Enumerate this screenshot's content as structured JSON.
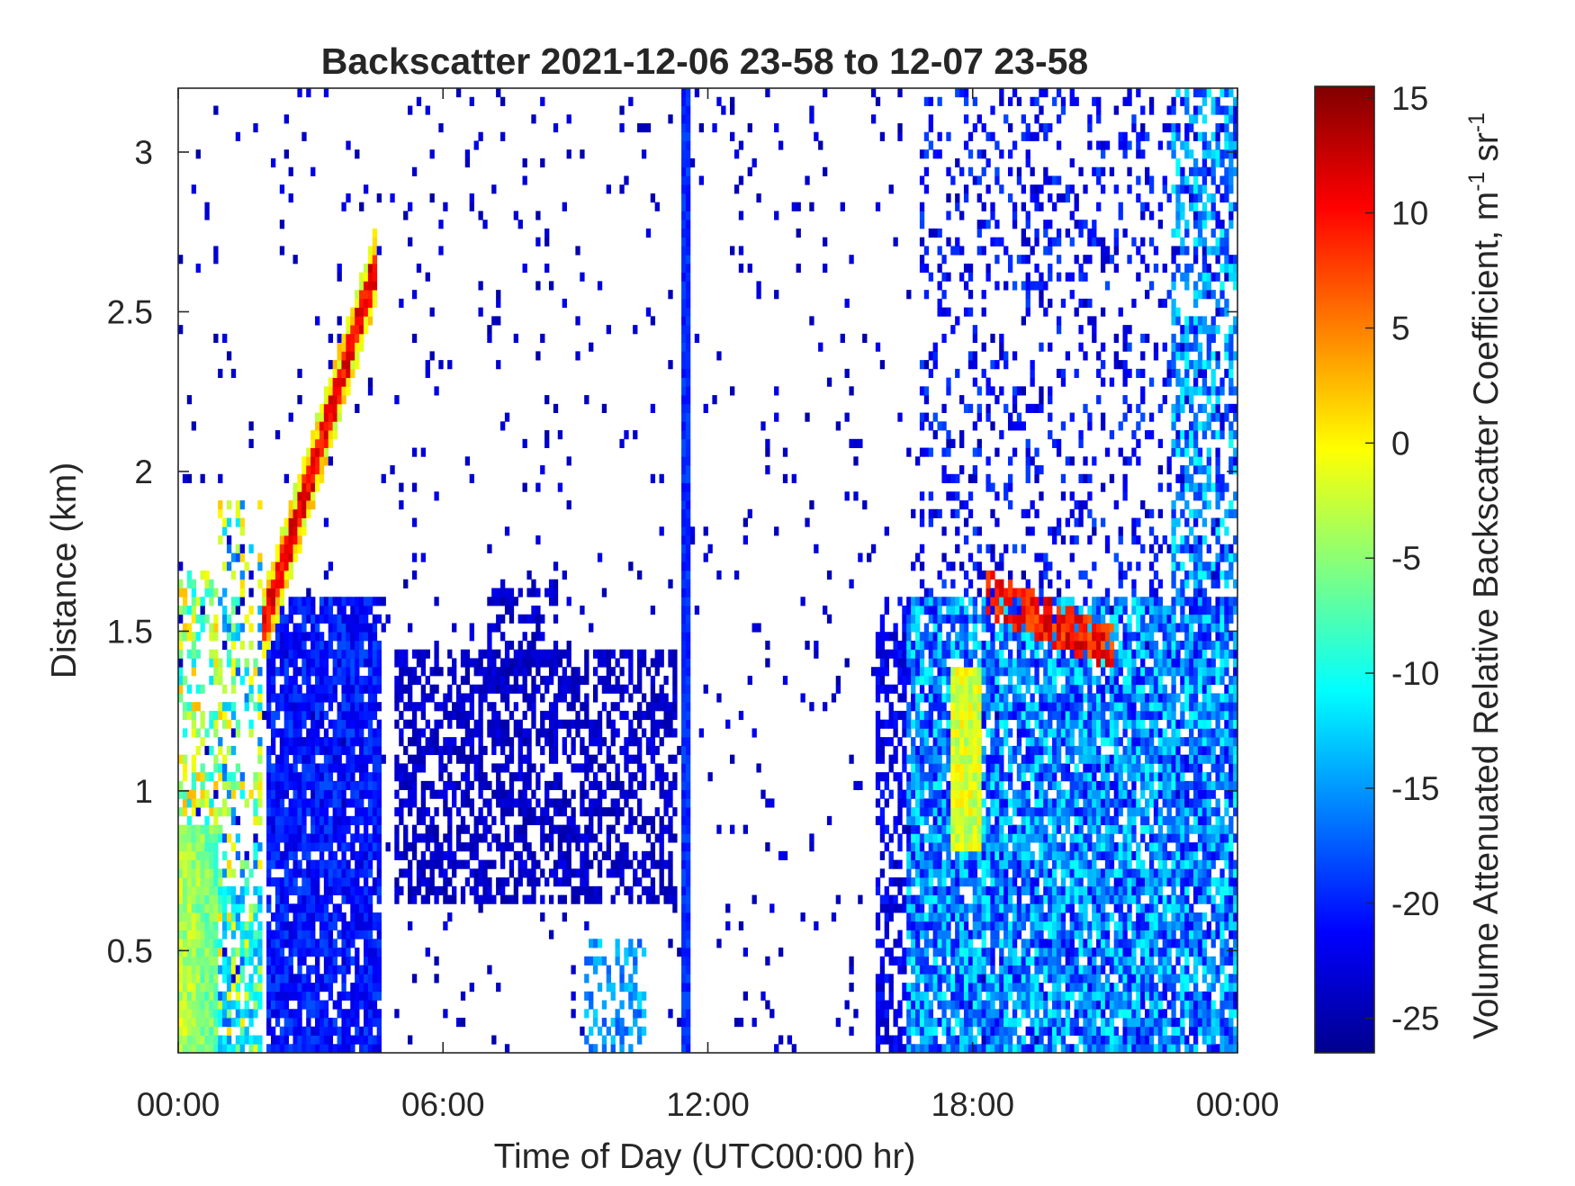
{
  "chart_data": {
    "type": "heatmap",
    "title": "Backscatter 2021-12-06 23-58 to 12-07 23-58",
    "xlabel": "Time of Day (UTC00:00 hr)",
    "ylabel": "Distance (km)",
    "x_range_hours": [
      0,
      24
    ],
    "xlim": [
      "00:00",
      "00:00"
    ],
    "ylim": [
      0.18,
      3.2
    ],
    "x_ticks": [
      {
        "hour": 0,
        "label": "00:00"
      },
      {
        "hour": 6,
        "label": "06:00"
      },
      {
        "hour": 12,
        "label": "12:00"
      },
      {
        "hour": 18,
        "label": "18:00"
      },
      {
        "hour": 24,
        "label": "00:00"
      }
    ],
    "y_ticks": [
      {
        "value": 0.5,
        "label": "0.5"
      },
      {
        "value": 1,
        "label": "1"
      },
      {
        "value": 1.5,
        "label": "1.5"
      },
      {
        "value": 2,
        "label": "2"
      },
      {
        "value": 2.5,
        "label": "2.5"
      },
      {
        "value": 3,
        "label": "3"
      }
    ],
    "colorbar": {
      "label": "Volume Attenuated Relative Backscatter Coefficient, m",
      "label_units_tail": " sr",
      "superscript": "-1",
      "range": [
        -26.5,
        15.5
      ],
      "ticks": [
        {
          "value": 15,
          "label": "15"
        },
        {
          "value": 10,
          "label": "10"
        },
        {
          "value": 5,
          "label": "5"
        },
        {
          "value": 0,
          "label": "0"
        },
        {
          "value": -5,
          "label": "-5"
        },
        {
          "value": -10,
          "label": "-10"
        },
        {
          "value": -15,
          "label": "-15"
        },
        {
          "value": -20,
          "label": "-20"
        },
        {
          "value": -25,
          "label": "-25"
        }
      ],
      "colormap": "jet"
    },
    "grid": false,
    "features": [
      {
        "name": "rising-aerosol-layer",
        "start_hour": 1.9,
        "start_km": 1.5,
        "end_hour": 4.5,
        "end_km": 2.65,
        "peak_db": 12
      },
      {
        "name": "early-surface-layer",
        "start_hour": 0.0,
        "end_hour": 0.9,
        "from_km": 0.18,
        "to_km": 1.7,
        "peak_db": 8
      },
      {
        "name": "boundary-layer-night",
        "start_hour": 2.2,
        "end_hour": 4.6,
        "from_km": 0.2,
        "to_km": 1.6,
        "mean_db": -21
      },
      {
        "name": "scattered-layer-midday",
        "start_hour": 4.9,
        "end_hour": 11.3,
        "from_km": 0.7,
        "to_km": 1.4,
        "mean_db": -24
      },
      {
        "name": "vertical-instrument-stripe",
        "hour": 11.5,
        "from_km": 0.18,
        "to_km": 3.2,
        "mean_db": -21
      },
      {
        "name": "evening-cloud-top",
        "start_hour": 18.3,
        "end_hour": 21.2,
        "from_km": 1.38,
        "to_km": 1.68,
        "peak_db": 12
      },
      {
        "name": "evening-boundary-layer",
        "start_hour": 16.5,
        "end_hour": 24.0,
        "from_km": 0.3,
        "to_km": 1.6,
        "mean_db": -17
      },
      {
        "name": "high-clouds-late",
        "start_hour": 17.0,
        "end_hour": 24.0,
        "from_km": 1.6,
        "to_km": 3.2,
        "mean_db": -22
      }
    ]
  }
}
